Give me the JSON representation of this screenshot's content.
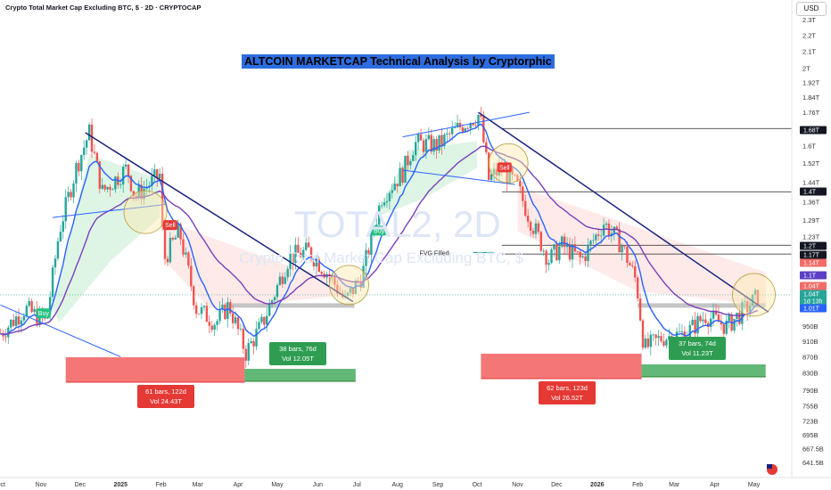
{
  "header": {
    "symbol_line": "Crypto Total Market Cap Excluding BTC, $ · 2D · CRYPTOCAP"
  },
  "title": "ALTCOIN MARKETCAP Technical Analysis by Cryptorphic",
  "currency_button": "USD",
  "watermark": {
    "ticker": "TOTAL2, 2D",
    "name": "Crypto Total Market Cap Excluding BTC, $"
  },
  "colors": {
    "up": "#26a69a",
    "down": "#ef5350",
    "ema_fast": "#2962ff",
    "ema_slow": "#7b3fb8",
    "trend": "#1a237e",
    "title_bg": "#2d6de0"
  },
  "chart_data": {
    "type": "candlestick",
    "x_tick_labels": [
      "Oct",
      "Nov",
      "Dec",
      "2025",
      "Feb",
      "Mar",
      "Apr",
      "May",
      "Jun",
      "Jul",
      "Aug",
      "Sep",
      "Oct",
      "Nov",
      "Dec",
      "2026",
      "Feb",
      "Mar",
      "Apr",
      "May"
    ],
    "y_tick_labels": [
      "2.3T",
      "2.2T",
      "2.1T",
      "2T",
      "1.92T",
      "1.84T",
      "1.76T",
      "1.6T",
      "1.52T",
      "1.44T",
      "1.36T",
      "1.29T",
      "1.23T",
      "950B",
      "910B",
      "870B",
      "830B",
      "790B",
      "755B",
      "723B",
      "695B",
      "667.5B",
      "641.5B"
    ],
    "y_scale": "log",
    "price_path": [
      [
        "2024-10-01",
        930
      ],
      [
        "2024-10-20",
        1000
      ],
      [
        "2024-11-05",
        960
      ],
      [
        "2024-11-15",
        1250
      ],
      [
        "2024-11-28",
        1500
      ],
      [
        "2024-12-08",
        1660
      ],
      [
        "2024-12-18",
        1400
      ],
      [
        "2025-01-06",
        1500
      ],
      [
        "2025-01-12",
        1380
      ],
      [
        "2025-01-31",
        1470
      ],
      [
        "2025-02-03",
        1150
      ],
      [
        "2025-02-15",
        1250
      ],
      [
        "2025-02-28",
        1000
      ],
      [
        "2025-03-15",
        960
      ],
      [
        "2025-03-25",
        1010
      ],
      [
        "2025-04-07",
        880
      ],
      [
        "2025-04-20",
        960
      ],
      [
        "2025-05-10",
        1160
      ],
      [
        "2025-05-25",
        1180
      ],
      [
        "2025-06-10",
        1100
      ],
      [
        "2025-06-22",
        1020
      ],
      [
        "2025-07-05",
        1100
      ],
      [
        "2025-07-20",
        1380
      ],
      [
        "2025-08-05",
        1480
      ],
      [
        "2025-08-14",
        1610
      ],
      [
        "2025-09-01",
        1600
      ],
      [
        "2025-09-20",
        1700
      ],
      [
        "2025-10-03",
        1750
      ],
      [
        "2025-10-10",
        1450
      ],
      [
        "2025-10-20",
        1500
      ],
      [
        "2025-11-01",
        1420
      ],
      [
        "2025-11-10",
        1300
      ],
      [
        "2025-11-25",
        1150
      ],
      [
        "2025-12-05",
        1200
      ],
      [
        "2025-12-20",
        1150
      ],
      [
        "2026-01-06",
        1280
      ],
      [
        "2026-01-20",
        1200
      ],
      [
        "2026-01-31",
        1080
      ],
      [
        "2026-02-06",
        890
      ],
      [
        "2026-02-20",
        920
      ],
      [
        "2026-03-10",
        930
      ],
      [
        "2026-03-25",
        980
      ],
      [
        "2026-04-10",
        950
      ],
      [
        "2026-04-25",
        1000
      ],
      [
        "2026-05-05",
        1040
      ]
    ],
    "series": [
      {
        "name": "",
        "kind": "ema_fast"
      },
      {
        "name": "",
        "kind": "ema_slow"
      }
    ],
    "price_level_badges": [
      {
        "value": 1.68,
        "label": "1.68T",
        "style": "black"
      },
      {
        "value": 1.4,
        "label": "1.4T",
        "style": "black"
      },
      {
        "value": 1.2,
        "label": "1.2T",
        "style": "black"
      },
      {
        "value": 1.17,
        "label": "1.17T",
        "style": "black"
      },
      {
        "value": 1.14,
        "label": "1.14T",
        "style": "red"
      },
      {
        "value": 1.1,
        "label": "1.1T",
        "style": "purple"
      },
      {
        "value": 1.04,
        "label": "1.04T",
        "style": "red"
      },
      {
        "value": 1.04,
        "label": "1.04T",
        "style": "green"
      },
      {
        "value": 1.025,
        "label": "1d 13h",
        "style": "green"
      },
      {
        "value": 1.01,
        "label": "1.01T",
        "style": "blue"
      }
    ],
    "signals": [
      {
        "label": "Buy",
        "date": "2024-11-03",
        "value": 985,
        "type": "buy"
      },
      {
        "label": "Sell",
        "date": "2025-02-08",
        "value": 1270,
        "type": "sell"
      },
      {
        "label": "Buy",
        "date": "2025-07-18",
        "value": 1250,
        "type": "buy"
      },
      {
        "label": "Sell",
        "date": "2025-10-22",
        "value": 1500,
        "type": "sell"
      }
    ],
    "annotations": [
      {
        "text": "61 bars, 122d",
        "text2": "Vol 24.43T",
        "style": "red"
      },
      {
        "text": "38 bars, 76d",
        "text2": "Vol 12.05T",
        "style": "green"
      },
      {
        "text": "62 bars, 123d",
        "text2": "Vol 26.52T",
        "style": "red"
      },
      {
        "text": "37 bars, 74d",
        "text2": "Vol 11.23T",
        "style": "green"
      },
      {
        "text": "FVG Filled",
        "text2": "",
        "style": "label"
      }
    ]
  }
}
